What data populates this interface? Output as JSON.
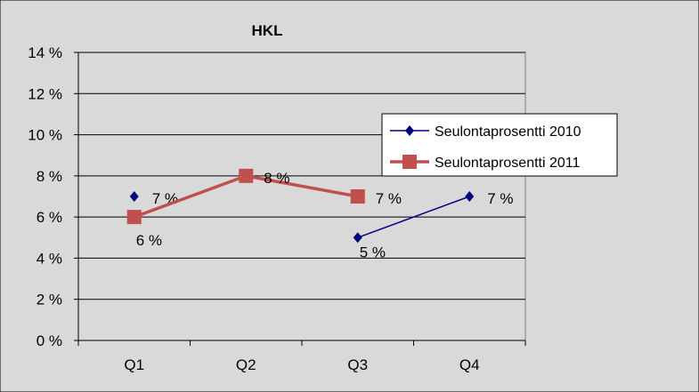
{
  "chart_data": {
    "type": "line",
    "title": "HKL",
    "categories": [
      "Q1",
      "Q2",
      "Q3",
      "Q4"
    ],
    "y_ticks": [
      "0 %",
      "2 %",
      "4 %",
      "6 %",
      "8 %",
      "10 %",
      "12 %",
      "14 %"
    ],
    "ylim": [
      0,
      14
    ],
    "grid": true,
    "legend_position": "right",
    "series": [
      {
        "name": "Seulontaprosentti 2010",
        "values": [
          7,
          null,
          5,
          7
        ],
        "labels": [
          "7 %",
          "",
          "5 %",
          "7 %"
        ],
        "color": "#000080",
        "marker": "diamond"
      },
      {
        "name": "Seulontaprosentti 2011",
        "values": [
          6,
          8,
          7,
          null
        ],
        "labels": [
          "6 %",
          "8 %",
          "7 %",
          ""
        ],
        "color": "#c0504d",
        "marker": "square"
      }
    ],
    "colors": {
      "background": "#d9d9d9",
      "plot_area": "#d9d9d9",
      "grid": "#000000"
    }
  }
}
